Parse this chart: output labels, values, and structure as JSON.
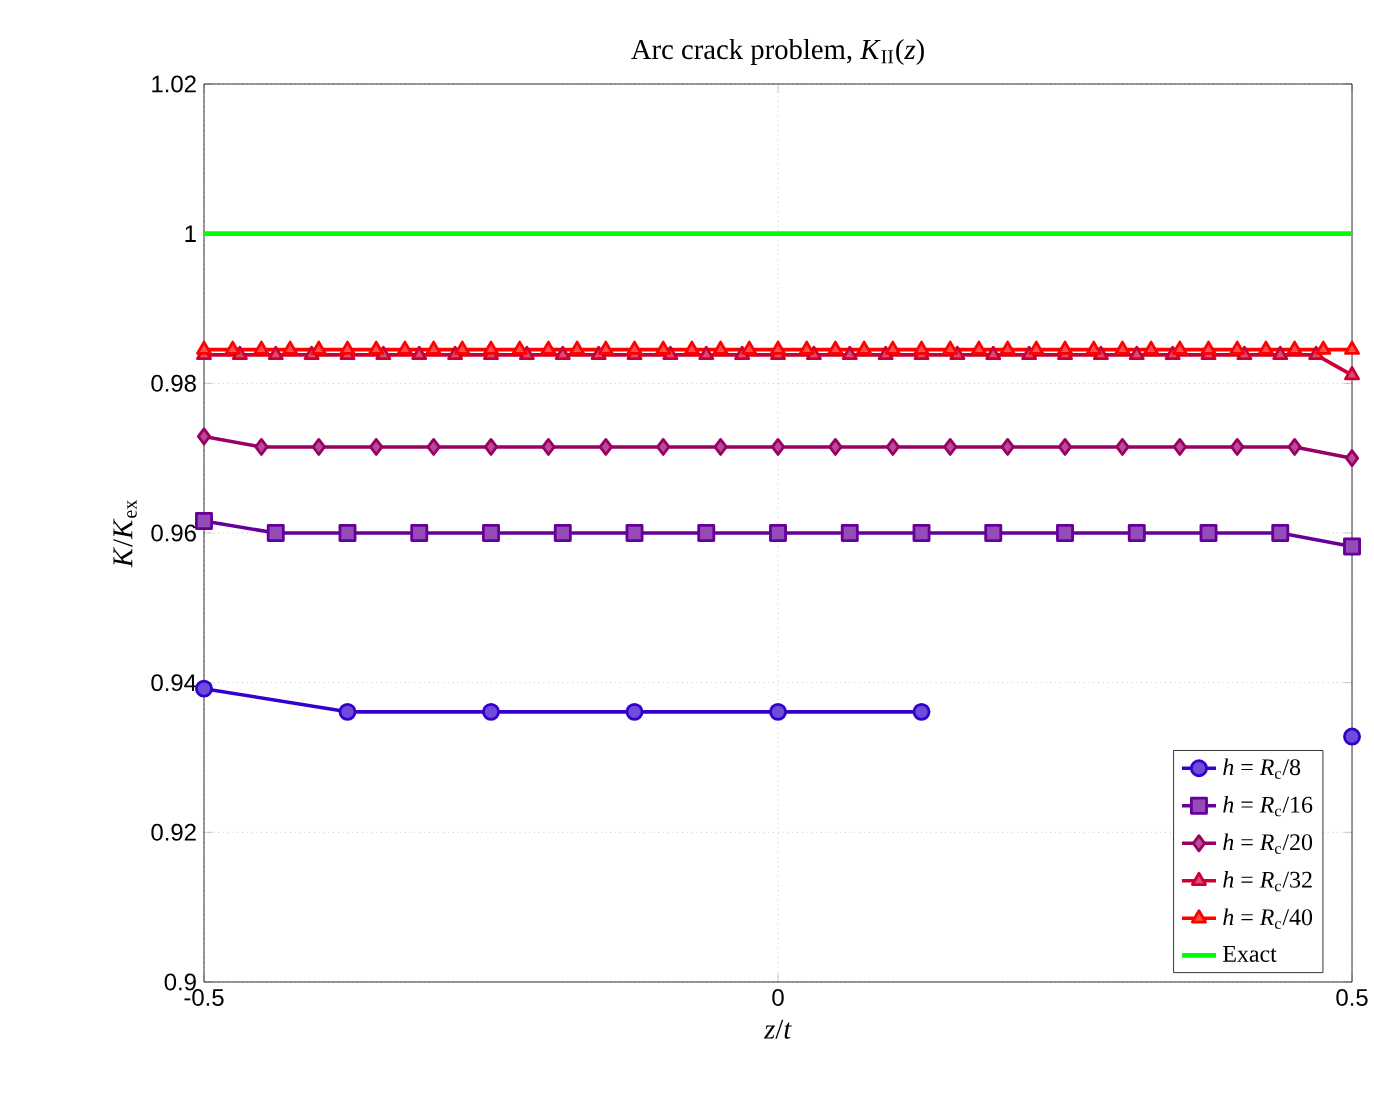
{
  "chart_data": {
    "type": "line",
    "title": "Arc crack problem, *K*$_{II}$(*z*)",
    "xlabel": "*z*/*t*",
    "ylabel": "*K*/*K*$_{ex}$",
    "xlim": [
      -0.5,
      0.5
    ],
    "xticks": [
      -0.5,
      0,
      0.5
    ],
    "ylim": [
      0.9,
      1.02
    ],
    "yticks": [
      0.9,
      0.92,
      0.94,
      0.96,
      0.98,
      1,
      1.02
    ],
    "grid": true,
    "legend": "bottom right",
    "series": [
      {
        "name": "*h* = *R*$_{c}$/8",
        "color": "#3300cc",
        "marker": "circle",
        "x": [
          -0.5,
          -0.375,
          -0.25,
          -0.125,
          0,
          0.125,
          0.25,
          0.375,
          0.5
        ],
        "values": [
          0.9392,
          0.9361,
          0.9361,
          0.9361,
          0.9361,
          0.9361,
          null,
          null,
          0.9328
        ]
      },
      {
        "name": "*h* = *R*$_{c}$/16",
        "color": "#660099",
        "marker": "square",
        "x": [
          -0.5,
          -0.4375,
          -0.375,
          -0.3125,
          -0.25,
          -0.1875,
          -0.125,
          -0.0625,
          0,
          0.0625,
          0.125,
          0.1875,
          0.25,
          0.3125,
          0.375,
          0.4375,
          0.5
        ],
        "values": [
          0.9616,
          0.96,
          0.96,
          0.96,
          0.96,
          0.96,
          0.96,
          0.96,
          0.96,
          0.96,
          0.96,
          0.96,
          0.96,
          0.96,
          0.96,
          0.96,
          0.9582
        ]
      },
      {
        "name": "*h* = *R*$_{c}$/20",
        "color": "#990066",
        "marker": "diamond",
        "x": [
          -0.5,
          -0.45,
          -0.4,
          -0.35,
          -0.3,
          -0.25,
          -0.2,
          -0.15,
          -0.1,
          -0.05,
          0,
          0.05,
          0.1,
          0.15,
          0.2,
          0.25,
          0.3,
          0.35,
          0.4,
          0.45,
          0.5
        ],
        "values": [
          0.9729,
          0.9715,
          0.9715,
          0.9715,
          0.9715,
          0.9715,
          0.9715,
          0.9715,
          0.9715,
          0.9715,
          0.9715,
          0.9715,
          0.9715,
          0.9715,
          0.9715,
          0.9715,
          0.9715,
          0.9715,
          0.9715,
          0.9715,
          0.97
        ]
      },
      {
        "name": "*h* = *R*$_{c}$/32",
        "color": "#cc0033",
        "marker": "triangle",
        "x": [
          -0.5,
          -0.46875,
          -0.4375,
          -0.40625,
          -0.375,
          -0.34375,
          -0.3125,
          -0.28125,
          -0.25,
          -0.21875,
          -0.1875,
          -0.15625,
          -0.125,
          -0.09375,
          -0.0625,
          -0.03125,
          0,
          0.03125,
          0.0625,
          0.09375,
          0.125,
          0.15625,
          0.1875,
          0.21875,
          0.25,
          0.28125,
          0.3125,
          0.34375,
          0.375,
          0.40625,
          0.4375,
          0.46875,
          0.5
        ],
        "values": [
          0.9838,
          0.9838,
          0.9838,
          0.9838,
          0.9838,
          0.9838,
          0.9838,
          0.9838,
          0.9838,
          0.9838,
          0.9838,
          0.9838,
          0.9838,
          0.9838,
          0.9838,
          0.9838,
          0.9838,
          0.9838,
          0.9838,
          0.9838,
          0.9838,
          0.9838,
          0.9838,
          0.9838,
          0.9838,
          0.9838,
          0.9838,
          0.9838,
          0.9838,
          0.9838,
          0.9838,
          0.9838,
          0.9811
        ]
      },
      {
        "name": "*h* = *R*$_{c}$/40",
        "color": "#ff0000",
        "marker": "triangle",
        "x": [
          -0.5,
          -0.475,
          -0.45,
          -0.425,
          -0.4,
          -0.375,
          -0.35,
          -0.325,
          -0.3,
          -0.275,
          -0.25,
          -0.225,
          -0.2,
          -0.175,
          -0.15,
          -0.125,
          -0.1,
          -0.075,
          -0.05,
          -0.025,
          0,
          0.025,
          0.05,
          0.075,
          0.1,
          0.125,
          0.15,
          0.175,
          0.2,
          0.225,
          0.25,
          0.275,
          0.3,
          0.325,
          0.35,
          0.375,
          0.4,
          0.425,
          0.45,
          0.475,
          0.5
        ],
        "values": [
          0.9845,
          0.9845,
          0.9845,
          0.9845,
          0.9845,
          0.9845,
          0.9845,
          0.9845,
          0.9845,
          0.9845,
          0.9845,
          0.9845,
          0.9845,
          0.9845,
          0.9845,
          0.9845,
          0.9845,
          0.9845,
          0.9845,
          0.9845,
          0.9845,
          0.9845,
          0.9845,
          0.9845,
          0.9845,
          0.9845,
          0.9845,
          0.9845,
          0.9845,
          0.9845,
          0.9845,
          0.9845,
          0.9845,
          0.9845,
          0.9845,
          0.9845,
          0.9845,
          0.9845,
          0.9845,
          0.9845,
          0.9845
        ]
      },
      {
        "name": "Exact",
        "color": "#00ff00",
        "marker": "none",
        "x": [
          -0.5,
          0.5
        ],
        "values": [
          1,
          1
        ]
      }
    ]
  }
}
